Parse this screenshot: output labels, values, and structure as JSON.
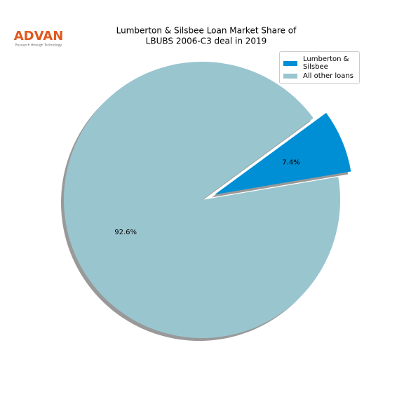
{
  "logo": {
    "name": "ADVAN",
    "tagline": "Research through Technology"
  },
  "chart_data": {
    "type": "pie",
    "title": [
      "Lumberton & Silsbee Loan Market Share of",
      "LBUBS 2006-C3 deal in 2019"
    ],
    "categories": [
      "Lumberton & Silsbee",
      "All other loans"
    ],
    "values": [
      7.4,
      92.6
    ],
    "value_labels": [
      "7.4%",
      "92.6%"
    ],
    "colors": [
      "#008fd5",
      "#99c5cf"
    ],
    "legend": "upper right"
  }
}
